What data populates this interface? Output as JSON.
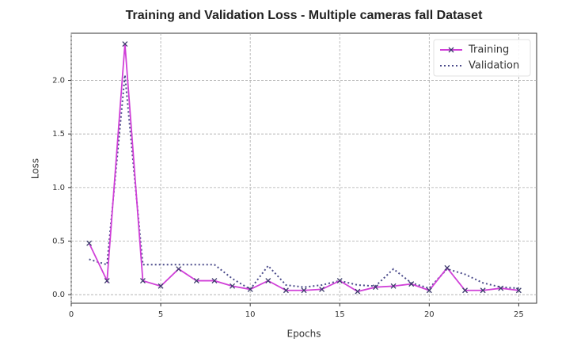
{
  "chart_data": {
    "type": "line",
    "title": "Training and Validation Loss - Multiple cameras fall Dataset",
    "x_label": "Epochs",
    "y_label": "Loss",
    "x": [
      1,
      2,
      3,
      4,
      5,
      6,
      7,
      8,
      9,
      10,
      11,
      12,
      13,
      14,
      15,
      16,
      17,
      18,
      19,
      20,
      21,
      22,
      23,
      24,
      25
    ],
    "series": [
      {
        "name": "Training",
        "color": "#d040d8",
        "marker": "x",
        "marker_color": "#3b3b6b",
        "linestyle": "solid",
        "values": [
          0.48,
          0.13,
          2.34,
          0.13,
          0.08,
          0.24,
          0.13,
          0.13,
          0.08,
          0.05,
          0.13,
          0.04,
          0.04,
          0.05,
          0.13,
          0.03,
          0.07,
          0.08,
          0.1,
          0.04,
          0.25,
          0.04,
          0.04,
          0.06,
          0.04
        ]
      },
      {
        "name": "Validation",
        "color": "#4a4a8a",
        "linestyle": "dotted",
        "values": [
          0.33,
          0.28,
          2.05,
          0.28,
          0.28,
          0.28,
          0.28,
          0.28,
          0.15,
          0.05,
          0.27,
          0.09,
          0.07,
          0.09,
          0.13,
          0.09,
          0.08,
          0.24,
          0.11,
          0.06,
          0.24,
          0.19,
          0.11,
          0.07,
          0.06
        ]
      }
    ],
    "xlim": [
      0,
      26
    ],
    "ylim": [
      -0.08,
      2.44
    ],
    "xticks": [
      0,
      5,
      10,
      15,
      20,
      25
    ],
    "yticks": [
      {
        "value": 0,
        "label": "0.0"
      },
      0.5,
      {
        "value": 1,
        "label": "1.0"
      },
      1.5,
      {
        "value": 2,
        "label": "2.0"
      }
    ],
    "grid": true,
    "legend": "upper right"
  }
}
